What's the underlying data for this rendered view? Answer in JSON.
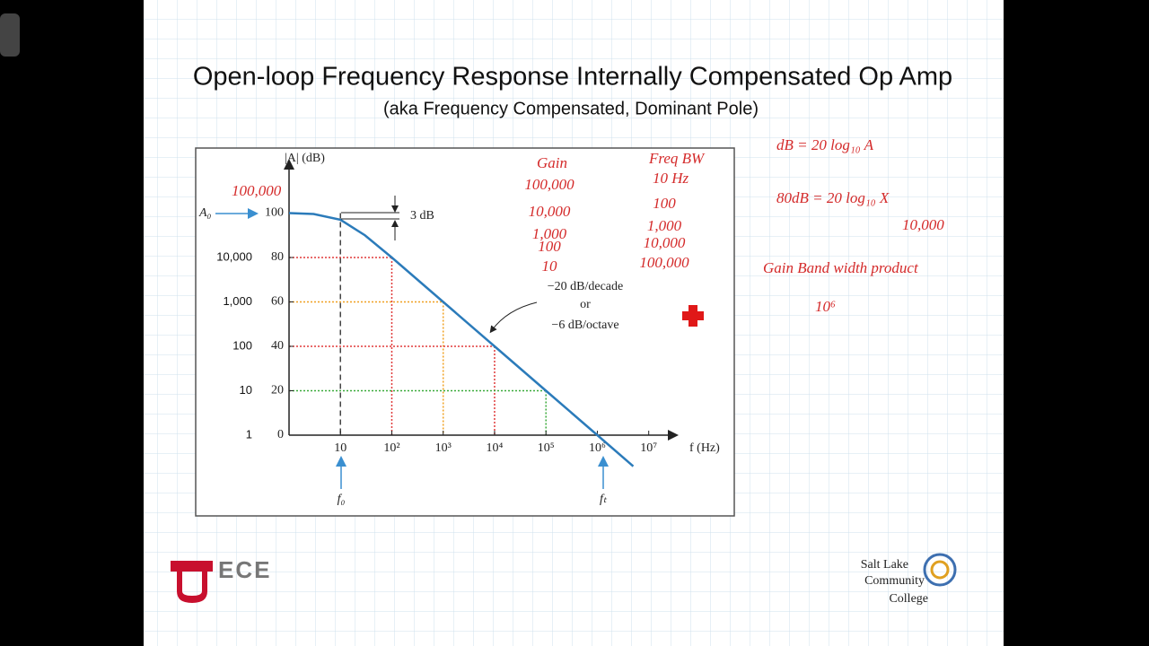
{
  "slide": {
    "title": "Open-loop Frequency Response Internally Compensated Op Amp",
    "subtitle": "(aka Frequency Compensated, Dominant Pole)"
  },
  "chart_data": {
    "type": "line",
    "xlog": true,
    "y_label": "|A| (dB)",
    "x_label": "f (Hz)",
    "x": [
      1,
      3,
      10,
      30,
      100,
      1000,
      10000,
      100000,
      1000000,
      5000000
    ],
    "values": [
      100,
      99.6,
      97,
      90,
      80,
      60,
      40,
      20,
      0,
      -14
    ],
    "color": "#2b7bba",
    "xlim": [
      1,
      30000000
    ],
    "ylim": [
      0,
      120
    ],
    "xticks": [
      10,
      {
        "value": 100,
        "label": "10²"
      },
      {
        "value": 1000,
        "label": "10³"
      },
      {
        "value": 10000,
        "label": "10⁴"
      },
      {
        "value": 100000,
        "label": "10⁵"
      },
      {
        "value": 1000000,
        "label": "10⁶"
      },
      {
        "value": 10000000,
        "label": "10⁷"
      }
    ],
    "yticks": [
      0,
      20,
      40,
      60,
      80,
      100
    ],
    "y2log": true,
    "y2lim": [
      1,
      100000
    ],
    "y2ticks": [
      1,
      10,
      100,
      {
        "value": 1000,
        "label": "1,000"
      },
      {
        "value": 10000,
        "label": "10,000"
      }
    ],
    "guides": [
      {
        "x": 10,
        "y": 100,
        "color": "#444444"
      },
      {
        "x": 100,
        "y": 80,
        "color": "#e03a3a"
      },
      {
        "x": 1000,
        "y": 60,
        "color": "#f0a020"
      },
      {
        "x": 10000,
        "y": 40,
        "color": "#e03a3a"
      },
      {
        "x": 100000,
        "y": 20,
        "color": "#3aaa3a"
      }
    ],
    "annotations": {
      "a0": "A₀",
      "three_db": "3 dB",
      "slope": "−20 dB/decade",
      "or": "or",
      "octave": "−6 dB/octave",
      "f0": "f₀",
      "ft": "fₜ"
    }
  },
  "notes": {
    "a0_value": "100,000",
    "gain_header": "Gain",
    "gain": [
      "100,000",
      "10,000",
      "1,000",
      "100",
      "10"
    ],
    "bw_header": "Freq BW",
    "bw_first": "10 Hz",
    "bw": [
      "100",
      "1,000",
      "10,000",
      "100,000"
    ],
    "eq1": "dB = 20 log₁₀ A",
    "eq2": "80dB = 20 log₁₀ X",
    "x_value": "10,000",
    "gbw": "Gain Band width product",
    "gbw_value": "10⁶"
  },
  "logos": {
    "ece": "ECE",
    "slcc": [
      "Salt Lake",
      "Community",
      "College"
    ]
  }
}
